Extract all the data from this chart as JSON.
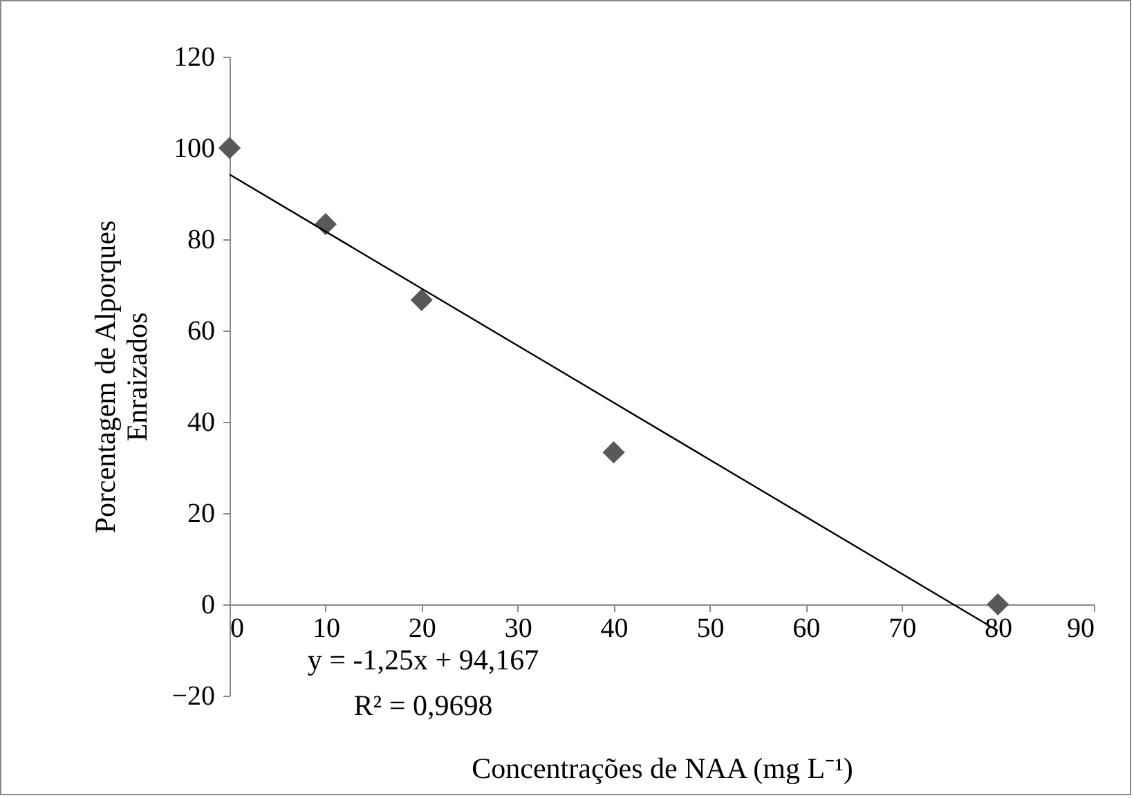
{
  "chart_data": {
    "type": "scatter",
    "xlabel": "Concentrações de NAA (mg L⁻¹)",
    "ylabel": "Porcentagem de Alporques\nEnraizados",
    "x": [
      0,
      10,
      20,
      40,
      80
    ],
    "series": [
      {
        "color": "#595959",
        "marker": "diamond",
        "values": [
          100,
          83.3,
          66.7,
          33.3,
          0
        ]
      },
      {
        "type": "line",
        "color": "#000000",
        "x": [
          0,
          80
        ],
        "values": [
          94.2,
          -5.8
        ]
      }
    ],
    "xlim": [
      0,
      90
    ],
    "xticks": [
      0,
      10,
      20,
      30,
      40,
      50,
      60,
      70,
      80,
      90
    ],
    "ylim": [
      -20,
      120
    ],
    "yticks": [
      -20,
      0,
      20,
      40,
      60,
      80,
      100,
      120
    ],
    "grid": false,
    "annotations": [
      "y = -1,25x + 94,167",
      "R² = 0,9698"
    ]
  }
}
